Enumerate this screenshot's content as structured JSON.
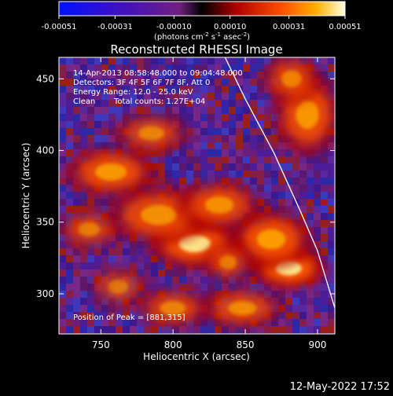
{
  "chart_data": {
    "type": "heatmap",
    "title": "Reconstructed RHESSI Image",
    "xlabel": "Heliocentric X (arcsec)",
    "ylabel": "Heliocentric Y (arcsec)",
    "xlim": [
      721,
      912
    ],
    "ylim": [
      272,
      465
    ],
    "xticks": [
      750,
      800,
      850,
      900
    ],
    "yticks": [
      300,
      350,
      400,
      450
    ],
    "colorbar": {
      "range": [
        -0.00051,
        0.00051
      ],
      "tick_values": [
        -0.00051,
        -0.00031,
        -0.0001,
        0.0001,
        0.00031,
        0.00051
      ],
      "tick_labels": [
        "-0.00051",
        "-0.00031",
        "-0.00010",
        "0.00010",
        "0.00031",
        "0.00051"
      ],
      "unit_parts": [
        "(photons cm",
        "-2",
        " s",
        "-1",
        " asec",
        "-2",
        ")"
      ]
    },
    "annotations": [
      "14-Apr-2013 08:58:48.000 to 09:04:48.000",
      "Detectors: 3F 4F 5F 6F 7F 8F, Att 0",
      "Energy Range: 12.0 - 25.0 keV",
      "Clean",
      "Total counts: 1.27E+04"
    ],
    "peak_label": "Position of Peak = [881,315]",
    "peak": [
      881,
      315
    ],
    "colors": {
      "background": "#000000",
      "text": "#ffffff",
      "limb": "#ffffff"
    },
    "limb": [
      [
        836,
        465
      ],
      [
        850,
        436
      ],
      [
        870,
        398
      ],
      [
        888,
        358
      ],
      [
        900,
        330
      ],
      [
        912,
        290
      ]
    ],
    "emission_sources": [
      {
        "x": 880,
        "y": 318,
        "w": 18,
        "h": 10,
        "a": 0.95
      },
      {
        "x": 868,
        "y": 338,
        "w": 20,
        "h": 14,
        "a": 0.8
      },
      {
        "x": 815,
        "y": 335,
        "w": 22,
        "h": 12,
        "a": 0.85
      },
      {
        "x": 790,
        "y": 355,
        "w": 25,
        "h": 14,
        "a": 0.7
      },
      {
        "x": 832,
        "y": 362,
        "w": 20,
        "h": 12,
        "a": 0.7
      },
      {
        "x": 757,
        "y": 385,
        "w": 22,
        "h": 12,
        "a": 0.75
      },
      {
        "x": 785,
        "y": 412,
        "w": 18,
        "h": 10,
        "a": 0.6
      },
      {
        "x": 742,
        "y": 345,
        "w": 15,
        "h": 10,
        "a": 0.55
      },
      {
        "x": 762,
        "y": 305,
        "w": 14,
        "h": 10,
        "a": 0.5
      },
      {
        "x": 800,
        "y": 290,
        "w": 18,
        "h": 10,
        "a": 0.6
      },
      {
        "x": 848,
        "y": 290,
        "w": 20,
        "h": 10,
        "a": 0.65
      },
      {
        "x": 893,
        "y": 425,
        "w": 16,
        "h": 20,
        "a": 0.75
      },
      {
        "x": 882,
        "y": 450,
        "w": 14,
        "h": 12,
        "a": 0.6
      },
      {
        "x": 838,
        "y": 322,
        "w": 12,
        "h": 10,
        "a": 0.55
      }
    ]
  },
  "footer": {
    "datetime": "12-May-2022 17:52"
  }
}
